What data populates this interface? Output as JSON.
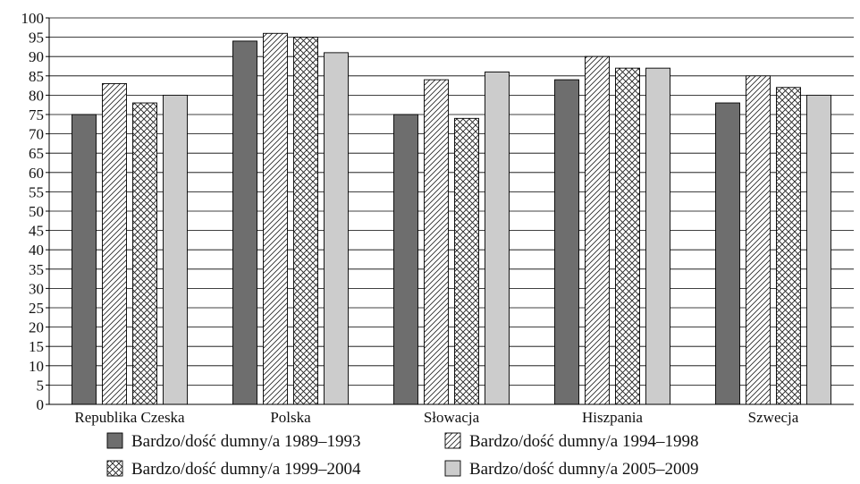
{
  "chart_data": {
    "type": "bar",
    "categories": [
      "Republika Czeska",
      "Polska",
      "Słowacja",
      "Hiszpania",
      "Szwecja"
    ],
    "series": [
      {
        "name": "Bardzo/dość dumny/a 1989–1993",
        "values": [
          75,
          94,
          75,
          84,
          78
        ],
        "color": "#6e6e6e",
        "pattern": "solid-dark"
      },
      {
        "name": "Bardzo/dość dumny/a 1994–1998",
        "values": [
          83,
          96,
          84,
          90,
          85
        ],
        "color": "#ffffff",
        "pattern": "diagonal-hatch"
      },
      {
        "name": "Bardzo/dość dumny/a 1999–2004",
        "values": [
          78,
          95,
          74,
          87,
          82
        ],
        "color": "#ffffff",
        "pattern": "cross-hatch"
      },
      {
        "name": "Bardzo/dość dumny/a 2005–2009",
        "values": [
          80,
          91,
          86,
          87,
          80
        ],
        "color": "#cccccc",
        "pattern": "solid-light"
      }
    ],
    "title": "",
    "xlabel": "",
    "ylabel": "",
    "ylim": [
      0,
      100
    ],
    "ytick_step": 5,
    "grid": "horizontal",
    "legend_position": "bottom"
  }
}
